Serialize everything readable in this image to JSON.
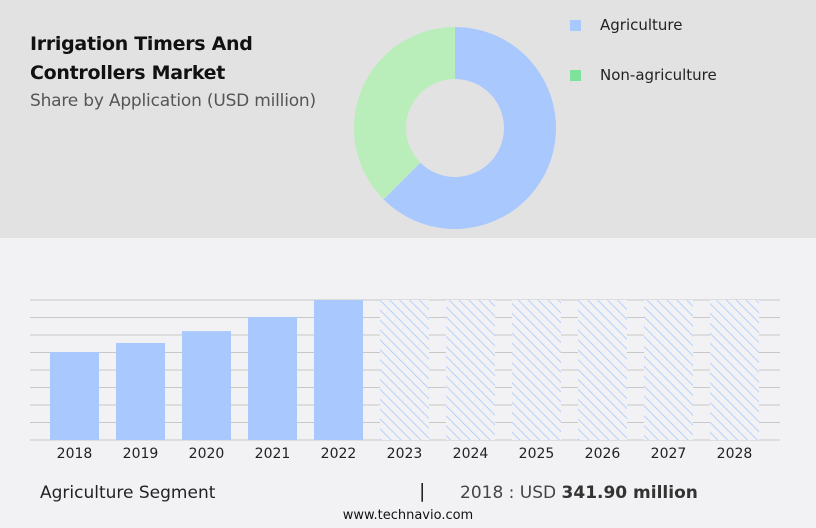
{
  "header": {
    "title_line1": "Irrigation Timers And",
    "title_line2": "Controllers Market",
    "subtitle": "Share by Application (USD million)"
  },
  "legend": [
    {
      "label": "Agriculture",
      "color": "#a8c8fe"
    },
    {
      "label": "Non-agriculture",
      "color": "#7ee29a"
    }
  ],
  "footer": {
    "segment": "Agriculture Segment",
    "separator": "|",
    "year_prefix": "2018 : USD ",
    "value": "341.90 million",
    "website": "www.technavio.com"
  },
  "colors": {
    "agriculture": "#a8c8fe",
    "non_agriculture_donut": "#b9eeba",
    "non_agriculture_legend": "#7ee29a",
    "top_panel_bg": "#e2e2e2",
    "bottom_panel_bg": "#f2f2f4",
    "gridline": "#c8c8c8"
  },
  "chart_data": [
    {
      "type": "pie",
      "title": "Irrigation Timers And Controllers Market - Share by Application (USD million)",
      "categories": [
        "Agriculture",
        "Non-agriculture"
      ],
      "values": [
        62.5,
        37.5
      ],
      "donut": true,
      "legend_position": "right"
    },
    {
      "type": "bar",
      "title": "Agriculture Segment",
      "categories": [
        "2018",
        "2019",
        "2020",
        "2021",
        "2022",
        "2023",
        "2024",
        "2025",
        "2026",
        "2027",
        "2028"
      ],
      "values": [
        341.9,
        377,
        423,
        478,
        544,
        null,
        null,
        null,
        null,
        null,
        null
      ],
      "forecast_years": [
        "2023",
        "2024",
        "2025",
        "2026",
        "2027",
        "2028"
      ],
      "forecast_style": "hatched",
      "annotation": "2018 : USD 341.90 million",
      "xlabel": "",
      "ylabel": "",
      "ylim": [
        0,
        544
      ],
      "grid": true,
      "y_ticks_visible": false
    }
  ]
}
